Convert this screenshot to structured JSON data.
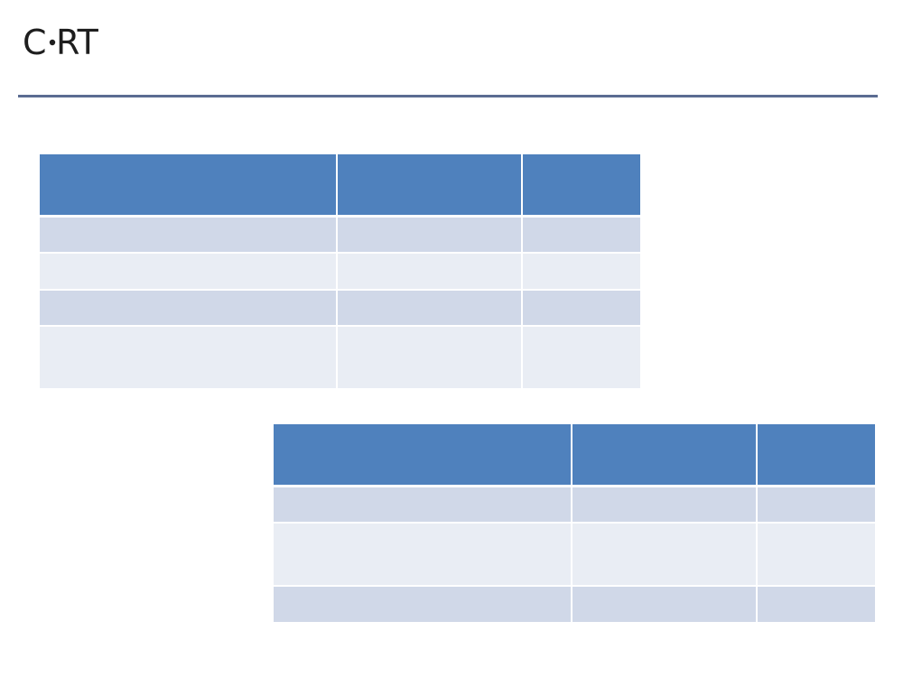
{
  "header": {
    "logo": {
      "left": "C",
      "right": "RT"
    }
  }
}
